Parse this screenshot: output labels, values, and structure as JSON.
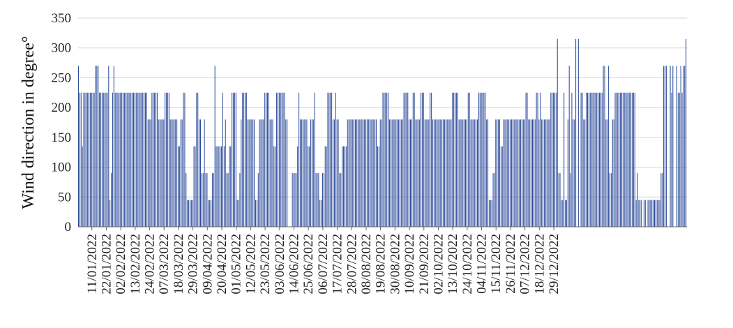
{
  "chart_data": {
    "type": "bar",
    "title": "",
    "xlabel": "",
    "ylabel": "Wind direction in degree°",
    "ylim": [
      0,
      350
    ],
    "yticks": [
      0,
      50,
      100,
      150,
      200,
      250,
      300,
      350
    ],
    "grid": true,
    "legend": "none",
    "bar_color": "#2e4d9c",
    "start_date": "2022-01-01",
    "xtick_labels": [
      "11/01/2022",
      "22/01/2022",
      "02/02/2022",
      "13/02/2022",
      "24/02/2022",
      "07/03/2022",
      "18/03/2022",
      "29/03/2022",
      "09/04/2022",
      "20/04/2022",
      "01/05/2022",
      "12/05/2022",
      "23/05/2022",
      "03/06/2022",
      "14/06/2022",
      "25/06/2022",
      "06/07/2022",
      "17/07/2022",
      "28/07/2022",
      "08/08/2022",
      "19/08/2022",
      "30/08/2022",
      "10/09/2022",
      "21/09/2022",
      "02/10/2022",
      "13/10/2022",
      "24/10/2022",
      "04/11/2022",
      "15/11/2022",
      "26/11/2022",
      "07/12/2022",
      "18/12/2022",
      "29/12/2022"
    ],
    "values": [
      270,
      225,
      225,
      135,
      225,
      225,
      225,
      225,
      225,
      225,
      225,
      225,
      225,
      270,
      270,
      270,
      225,
      225,
      225,
      225,
      225,
      225,
      225,
      270,
      45,
      90,
      225,
      270,
      225,
      225,
      225,
      225,
      225,
      225,
      225,
      225,
      225,
      225,
      225,
      225,
      225,
      225,
      225,
      225,
      225,
      225,
      225,
      225,
      225,
      225,
      225,
      225,
      225,
      180,
      180,
      180,
      225,
      225,
      225,
      225,
      225,
      180,
      180,
      180,
      180,
      180,
      225,
      225,
      225,
      225,
      180,
      180,
      180,
      180,
      180,
      180,
      135,
      135,
      180,
      180,
      225,
      225,
      90,
      45,
      45,
      45,
      45,
      45,
      135,
      135,
      225,
      225,
      180,
      180,
      90,
      90,
      180,
      90,
      90,
      45,
      45,
      45,
      90,
      90,
      270,
      135,
      135,
      135,
      135,
      135,
      225,
      135,
      180,
      90,
      90,
      135,
      135,
      225,
      225,
      225,
      225,
      45,
      45,
      90,
      180,
      225,
      225,
      225,
      225,
      180,
      180,
      180,
      180,
      180,
      180,
      45,
      45,
      90,
      180,
      180,
      180,
      180,
      225,
      225,
      225,
      225,
      180,
      180,
      180,
      135,
      135,
      225,
      225,
      225,
      225,
      225,
      225,
      225,
      180,
      180,
      0,
      0,
      0,
      90,
      90,
      90,
      90,
      135,
      225,
      180,
      180,
      180,
      180,
      180,
      180,
      135,
      135,
      180,
      180,
      180,
      225,
      90,
      90,
      90,
      45,
      45,
      90,
      90,
      135,
      135,
      225,
      225,
      225,
      225,
      180,
      180,
      225,
      180,
      180,
      90,
      90,
      135,
      135,
      135,
      135,
      180,
      180,
      180,
      180,
      180,
      180,
      180,
      180,
      180,
      180,
      180,
      180,
      180,
      180,
      180,
      180,
      180,
      180,
      180,
      180,
      180,
      180,
      180,
      135,
      135,
      180,
      180,
      225,
      225,
      225,
      225,
      225,
      180,
      180,
      180,
      180,
      180,
      180,
      180,
      180,
      180,
      180,
      180,
      225,
      225,
      225,
      225,
      180,
      180,
      180,
      225,
      225,
      180,
      180,
      180,
      180,
      225,
      225,
      225,
      180,
      180,
      180,
      180,
      225,
      225,
      180,
      180,
      180,
      180,
      180,
      180,
      180,
      180,
      180,
      180,
      180,
      180,
      180,
      180,
      180,
      225,
      225,
      225,
      225,
      225,
      180,
      180,
      180,
      180,
      180,
      180,
      180,
      225,
      225,
      180,
      180,
      180,
      180,
      180,
      180,
      225,
      225,
      225,
      225,
      225,
      225,
      180,
      180,
      45,
      45,
      45,
      90,
      90,
      180,
      180,
      180,
      180,
      135,
      135,
      180,
      180,
      180,
      180,
      180,
      180,
      180,
      180,
      180,
      180,
      180,
      180,
      180,
      180,
      180,
      180,
      180,
      225,
      225,
      180,
      180,
      180,
      180,
      180,
      180,
      225,
      225,
      180,
      225,
      180,
      180,
      180,
      180,
      180,
      180,
      180,
      225,
      225,
      225,
      225,
      225,
      315,
      90,
      90,
      45,
      45,
      225,
      45,
      45,
      180,
      270,
      90,
      225,
      180,
      180,
      315,
      0,
      315,
      0,
      225,
      225,
      180,
      180,
      225,
      225,
      225,
      225,
      225,
      225,
      225,
      225,
      225,
      225,
      225,
      225,
      225,
      270,
      270,
      180,
      180,
      270,
      90,
      90,
      180,
      180,
      225,
      225,
      225,
      225,
      225,
      225,
      225,
      225,
      225,
      225,
      225,
      225,
      225,
      225,
      225,
      225,
      45,
      90,
      45,
      45,
      45,
      0,
      45,
      45,
      0,
      45,
      45,
      45,
      45,
      45,
      45,
      45,
      45,
      45,
      45,
      90,
      90,
      270,
      270,
      270,
      0,
      0,
      270,
      225,
      270,
      0,
      0,
      270,
      225,
      225,
      270,
      225,
      270,
      270,
      315
    ]
  }
}
